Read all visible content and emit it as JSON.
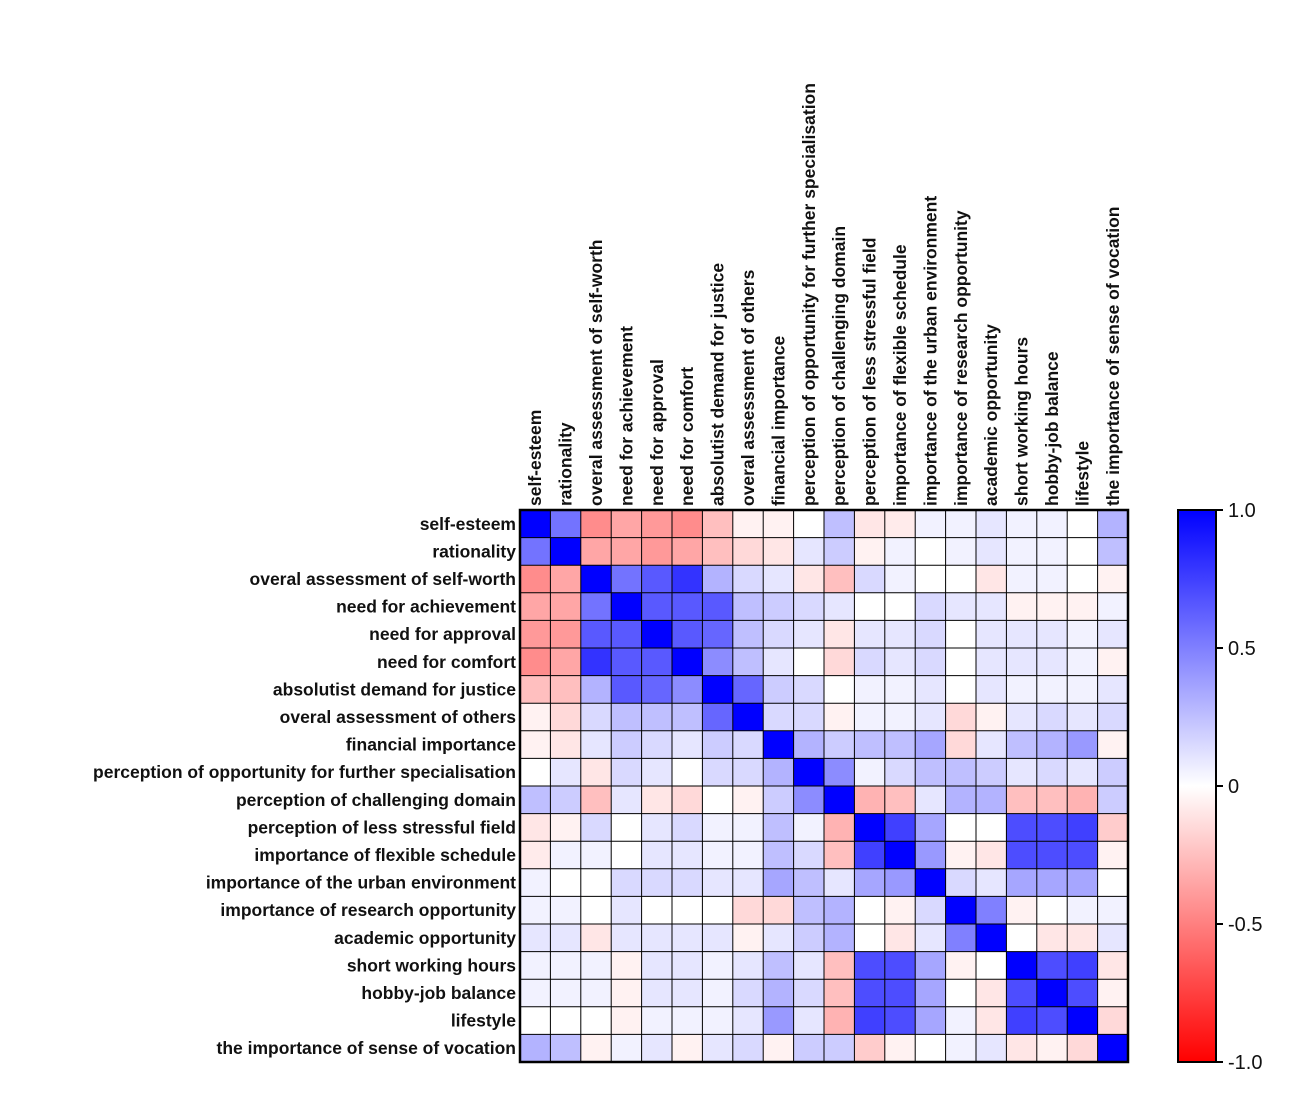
{
  "chart_data": {
    "type": "heatmap",
    "title": "",
    "xlabel": "",
    "ylabel": "",
    "labels": [
      "self-esteem",
      "rationality",
      "overal assessment of self-worth",
      "need for achievement",
      "need for approval",
      "need for comfort",
      "absolutist demand for justice",
      "overal assessment of others",
      "financial importance",
      "perception of opportunity for further specialisation",
      "perception of challenging domain",
      "perception of less stressful field",
      "importance of flexible schedule",
      "importance of the urban environment",
      "importance of research opportunity",
      "academic opportunity",
      "short working hours",
      "hobby-job balance",
      "lifestyle",
      "the importance of sense of vocation"
    ],
    "values": [
      [
        1.0,
        0.55,
        -0.45,
        -0.35,
        -0.4,
        -0.45,
        -0.25,
        -0.05,
        -0.05,
        0.0,
        0.25,
        -0.1,
        -0.08,
        0.05,
        0.05,
        0.1,
        0.05,
        0.05,
        0.0,
        0.3
      ],
      [
        0.55,
        1.0,
        -0.35,
        -0.35,
        -0.4,
        -0.35,
        -0.25,
        -0.15,
        -0.1,
        0.1,
        0.2,
        -0.05,
        0.05,
        0.0,
        0.05,
        0.1,
        0.05,
        0.05,
        0.0,
        0.25
      ],
      [
        -0.45,
        -0.35,
        1.0,
        0.55,
        0.65,
        0.8,
        0.3,
        0.15,
        0.1,
        -0.1,
        -0.25,
        0.15,
        0.05,
        0.0,
        0.0,
        -0.1,
        0.05,
        0.05,
        0.0,
        -0.05
      ],
      [
        -0.35,
        -0.35,
        0.55,
        1.0,
        0.65,
        0.65,
        0.65,
        0.25,
        0.2,
        0.15,
        0.1,
        0.0,
        0.0,
        0.15,
        0.1,
        0.1,
        -0.05,
        -0.05,
        -0.05,
        0.05
      ],
      [
        -0.4,
        -0.4,
        0.65,
        0.65,
        1.0,
        0.65,
        0.6,
        0.25,
        0.15,
        0.1,
        -0.1,
        0.1,
        0.1,
        0.15,
        0.0,
        0.1,
        0.1,
        0.1,
        0.05,
        0.1
      ],
      [
        -0.45,
        -0.35,
        0.8,
        0.65,
        0.65,
        1.0,
        0.45,
        0.25,
        0.1,
        0.0,
        -0.15,
        0.15,
        0.1,
        0.15,
        0.0,
        0.1,
        0.1,
        0.1,
        0.05,
        -0.05
      ],
      [
        -0.25,
        -0.25,
        0.3,
        0.65,
        0.6,
        0.45,
        1.0,
        0.6,
        0.2,
        0.15,
        0.0,
        0.05,
        0.05,
        0.1,
        0.0,
        0.1,
        0.05,
        0.05,
        0.05,
        0.1
      ],
      [
        -0.05,
        -0.15,
        0.15,
        0.25,
        0.25,
        0.25,
        0.6,
        1.0,
        0.15,
        0.15,
        -0.05,
        0.05,
        0.05,
        0.1,
        -0.15,
        -0.05,
        0.1,
        0.15,
        0.1,
        0.15
      ],
      [
        -0.05,
        -0.1,
        0.1,
        0.2,
        0.15,
        0.1,
        0.2,
        0.15,
        1.0,
        0.3,
        0.2,
        0.25,
        0.25,
        0.35,
        -0.15,
        0.1,
        0.25,
        0.3,
        0.4,
        -0.05
      ],
      [
        0.0,
        0.1,
        -0.1,
        0.15,
        0.1,
        0.0,
        0.15,
        0.15,
        0.3,
        1.0,
        0.45,
        0.05,
        0.15,
        0.25,
        0.25,
        0.2,
        0.1,
        0.15,
        0.1,
        0.2
      ],
      [
        0.25,
        0.2,
        -0.25,
        0.1,
        -0.1,
        -0.15,
        0.0,
        -0.05,
        0.2,
        0.45,
        1.0,
        -0.3,
        -0.25,
        0.1,
        0.3,
        0.3,
        -0.25,
        -0.25,
        -0.3,
        0.2
      ],
      [
        -0.1,
        -0.05,
        0.15,
        0.0,
        0.1,
        0.15,
        0.05,
        0.05,
        0.25,
        0.05,
        -0.3,
        1.0,
        0.75,
        0.35,
        0.0,
        0.0,
        0.7,
        0.7,
        0.75,
        -0.2
      ],
      [
        -0.08,
        0.05,
        0.05,
        0.0,
        0.1,
        0.1,
        0.05,
        0.05,
        0.25,
        0.15,
        -0.25,
        0.75,
        1.0,
        0.4,
        -0.05,
        -0.1,
        0.7,
        0.7,
        0.7,
        -0.05
      ],
      [
        0.05,
        0.0,
        0.0,
        0.15,
        0.15,
        0.15,
        0.1,
        0.1,
        0.35,
        0.25,
        0.1,
        0.35,
        0.4,
        1.0,
        0.15,
        0.1,
        0.35,
        0.35,
        0.35,
        0.0
      ],
      [
        0.05,
        0.05,
        0.0,
        0.1,
        0.0,
        0.0,
        0.0,
        -0.15,
        -0.15,
        0.25,
        0.3,
        0.0,
        -0.05,
        0.15,
        1.0,
        0.5,
        -0.05,
        0.0,
        0.05,
        0.05
      ],
      [
        0.1,
        0.1,
        -0.1,
        0.1,
        0.1,
        0.1,
        0.1,
        -0.05,
        0.1,
        0.2,
        0.3,
        0.0,
        -0.1,
        0.1,
        0.5,
        1.0,
        0.0,
        -0.1,
        -0.1,
        0.1
      ],
      [
        0.05,
        0.05,
        0.05,
        -0.05,
        0.1,
        0.1,
        0.05,
        0.1,
        0.25,
        0.1,
        -0.25,
        0.7,
        0.7,
        0.35,
        -0.05,
        0.0,
        1.0,
        0.7,
        0.75,
        -0.1
      ],
      [
        0.05,
        0.05,
        0.05,
        -0.05,
        0.1,
        0.1,
        0.05,
        0.15,
        0.3,
        0.15,
        -0.25,
        0.7,
        0.7,
        0.35,
        0.0,
        -0.1,
        0.7,
        1.0,
        0.7,
        -0.05
      ],
      [
        0.0,
        0.0,
        0.0,
        -0.05,
        0.05,
        0.05,
        0.05,
        0.1,
        0.4,
        0.1,
        -0.3,
        0.75,
        0.7,
        0.35,
        0.05,
        -0.1,
        0.75,
        0.7,
        1.0,
        -0.15
      ],
      [
        0.3,
        0.25,
        -0.05,
        0.05,
        0.1,
        -0.05,
        0.1,
        0.15,
        -0.05,
        0.2,
        0.2,
        -0.2,
        -0.05,
        0.0,
        0.05,
        0.1,
        -0.1,
        -0.05,
        -0.15,
        1.0
      ]
    ],
    "colorbar": {
      "min": -1.0,
      "max": 1.0,
      "ticks": [
        1.0,
        0.5,
        0,
        -0.5,
        -1.0
      ],
      "tick_labels": [
        "1.0",
        "0.5",
        "0",
        "-0.5",
        "-1.0"
      ],
      "colors": {
        "negative": "#ff0000",
        "zero": "#ffffff",
        "positive": "#0000ff"
      }
    },
    "grid": true,
    "legend": "right"
  }
}
